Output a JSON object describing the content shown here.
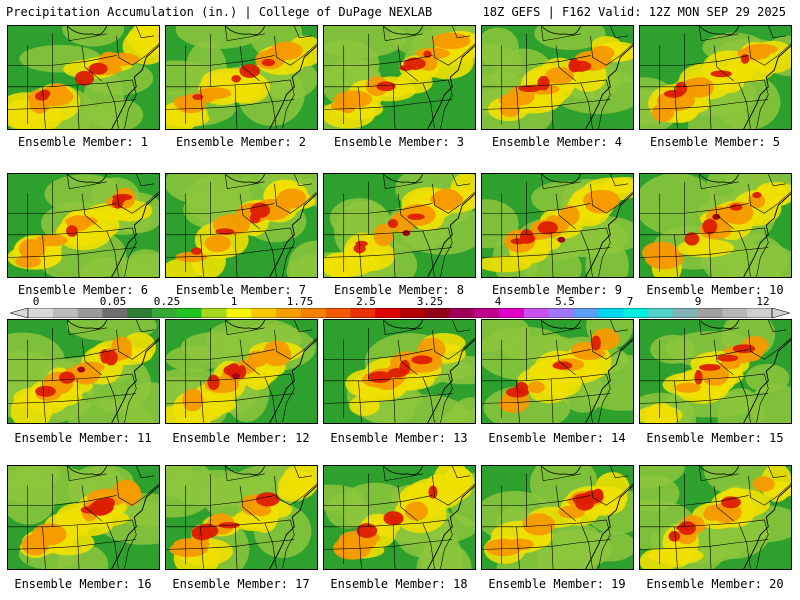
{
  "header": {
    "left_title": "Precipitation Accumulation (in.) | College of DuPage NEXLAB",
    "right_title": "18Z GEFS | F162 Valid: 12Z MON SEP 29 2025"
  },
  "members": [
    {
      "label": "Ensemble Member: 1"
    },
    {
      "label": "Ensemble Member: 2"
    },
    {
      "label": "Ensemble Member: 3"
    },
    {
      "label": "Ensemble Member: 4"
    },
    {
      "label": "Ensemble Member: 5"
    },
    {
      "label": "Ensemble Member: 6"
    },
    {
      "label": "Ensemble Member: 7"
    },
    {
      "label": "Ensemble Member: 8"
    },
    {
      "label": "Ensemble Member: 9"
    },
    {
      "label": "Ensemble Member: 10"
    },
    {
      "label": "Ensemble Member: 11"
    },
    {
      "label": "Ensemble Member: 12"
    },
    {
      "label": "Ensemble Member: 13"
    },
    {
      "label": "Ensemble Member: 14"
    },
    {
      "label": "Ensemble Member: 15"
    },
    {
      "label": "Ensemble Member: 16"
    },
    {
      "label": "Ensemble Member: 17"
    },
    {
      "label": "Ensemble Member: 18"
    },
    {
      "label": "Ensemble Member: 19"
    },
    {
      "label": "Ensemble Member: 20"
    }
  ],
  "colorbar": {
    "tick_labels": [
      "0",
      "0.05",
      "0.25",
      "1",
      "1.75",
      "2.5",
      "3.25",
      "4",
      "5.5",
      "7",
      "9",
      "12"
    ],
    "colors": [
      "#d9d9d9",
      "#bdbdbd",
      "#9a9a9a",
      "#6e6e6e",
      "#2e7d32",
      "#38a838",
      "#1fc41f",
      "#a4d81c",
      "#f5f500",
      "#f5c800",
      "#f5a000",
      "#f58000",
      "#f05a00",
      "#e83000",
      "#dc0000",
      "#b40000",
      "#900018",
      "#a0005a",
      "#c0008c",
      "#e000c8",
      "#c850f0",
      "#a078f5",
      "#5aa0f5",
      "#00d8f0",
      "#00f0e0",
      "#50d0c8",
      "#80b4b4",
      "#a0a0a0",
      "#b8b8b8",
      "#d0d0d0"
    ]
  },
  "colors": {
    "base_green": "#2ea02e",
    "light_green": "#8cc63c",
    "yellow": "#f0e000",
    "orange": "#f59a00",
    "red": "#dc1e00",
    "dark_red": "#a0001e",
    "magenta": "#c040c8",
    "cyan": "#00e0f0",
    "line": "#000000"
  }
}
